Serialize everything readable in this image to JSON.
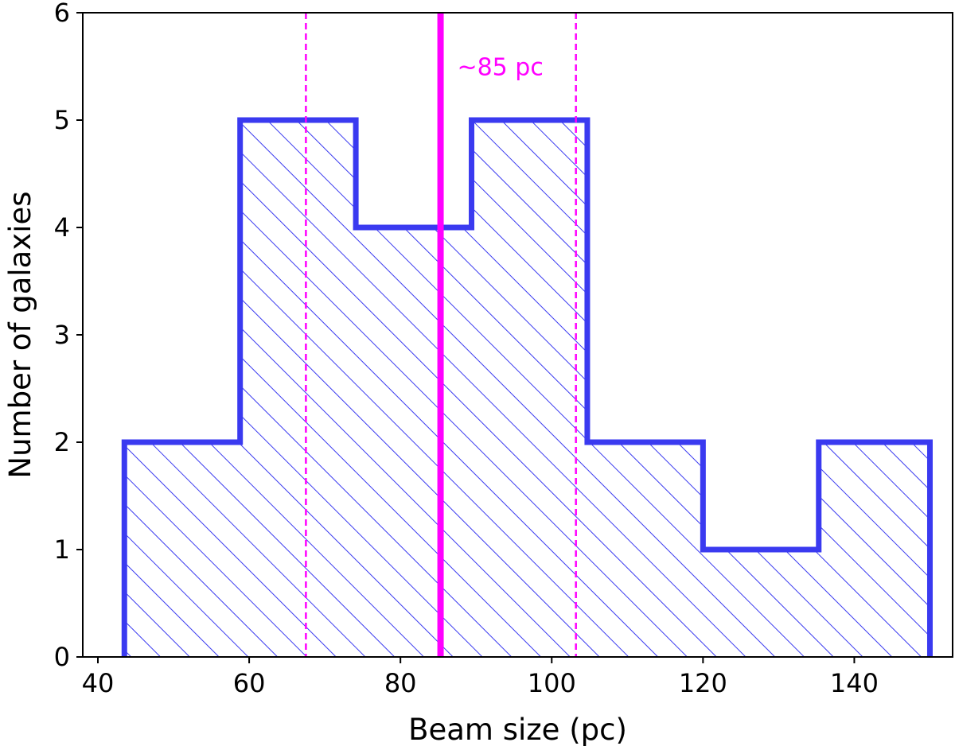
{
  "chart_data": {
    "type": "bar",
    "title": "",
    "xlabel": "Beam size (pc)",
    "ylabel": "Number of galaxies",
    "xlim": [
      38,
      153
    ],
    "ylim": [
      0,
      6
    ],
    "xticks": [
      40,
      60,
      80,
      100,
      120,
      140
    ],
    "yticks": [
      0,
      1,
      2,
      3,
      4,
      5,
      6
    ],
    "bin_edges": [
      43.5,
      58.8,
      74.1,
      89.4,
      104.7,
      120.0,
      135.3,
      150.0
    ],
    "counts": [
      2,
      5,
      4,
      5,
      2,
      1,
      2
    ],
    "bar_color": "#3a3af0",
    "hatch": "diagonal",
    "grid": false,
    "reference_lines": [
      {
        "value": 85.3,
        "style": "solid",
        "color": "#ff00ff"
      },
      {
        "value": 67.5,
        "style": "dashed",
        "color": "#ff00ff"
      },
      {
        "value": 103.2,
        "style": "dashed",
        "color": "#ff00ff"
      }
    ],
    "annotations": [
      {
        "text": "~85 pc",
        "x": 87.5,
        "y": 5.5,
        "color": "#ff00ff"
      }
    ]
  }
}
